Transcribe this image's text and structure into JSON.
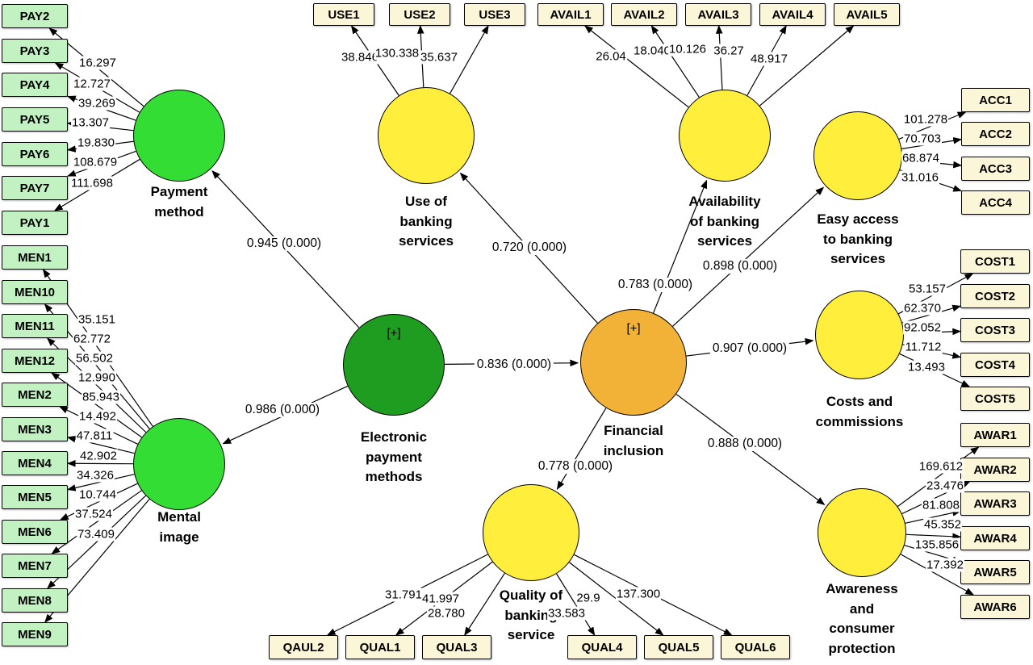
{
  "colors": {
    "background": "#ffffff",
    "indicator_fill_green": "#c2f2c2",
    "indicator_fill_cream": "#fcf6d8",
    "latent_green": "#33dd33",
    "latent_dark_green": "#1f9d20",
    "latent_yellow": "#ffee3b",
    "latent_orange": "#f2b137",
    "edge_color": "#000000"
  },
  "nodes": {
    "payment_method": {
      "label": "Payment\nmethod"
    },
    "mental_image": {
      "label": "Mental\nimage"
    },
    "electronic_payment_methods": {
      "label": "Electronic\npayment\nmethods",
      "badge": "[+]"
    },
    "use_of_banking_services": {
      "label": "Use of\nbanking\nservices"
    },
    "availability_of_banking_services": {
      "label": "Availability\nof banking\nservices"
    },
    "easy_access_to_banking_services": {
      "label": "Easy access\nto banking\nservices"
    },
    "costs_and_commissions": {
      "label": "Costs and\ncommissions"
    },
    "awareness_and_consumer_protection": {
      "label": "Awareness\nand\nconsumer\nprotection"
    },
    "quality_of_banking_service": {
      "label": "Quality of\nbanking\nservice"
    },
    "financial_inclusion": {
      "label": "Financial\ninclusion",
      "badge": "[+]"
    }
  },
  "indicators": {
    "pay": [
      "PAY2",
      "PAY3",
      "PAY4",
      "PAY5",
      "PAY6",
      "PAY7",
      "PAY1"
    ],
    "men": [
      "MEN1",
      "MEN10",
      "MEN11",
      "MEN12",
      "MEN2",
      "MEN3",
      "MEN4",
      "MEN5",
      "MEN6",
      "MEN7",
      "MEN8",
      "MEN9"
    ],
    "use": [
      "USE1",
      "USE2",
      "USE3"
    ],
    "avail": [
      "AVAIL1",
      "AVAIL2",
      "AVAIL3",
      "AVAIL4",
      "AVAIL5"
    ],
    "acc": [
      "ACC1",
      "ACC2",
      "ACC3",
      "ACC4"
    ],
    "cost": [
      "COST1",
      "COST2",
      "COST3",
      "COST4",
      "COST5"
    ],
    "awar": [
      "AWAR1",
      "AWAR2",
      "AWAR3",
      "AWAR4",
      "AWAR5",
      "AWAR6"
    ],
    "qual": [
      "QAUL2",
      "QUAL1",
      "QUAL3",
      "QUAL4",
      "QUAL5",
      "QUAL6"
    ]
  },
  "loadings": {
    "pay": [
      "16.297",
      "12.727",
      "39.269",
      "13.307",
      "19.830",
      "108.679",
      "111.698"
    ],
    "men": [
      "35.151",
      "62.772",
      "56.502",
      "12.990",
      "85.943",
      "14.492",
      "47.811",
      "42.902",
      "34.326",
      "10.744",
      "37.524",
      "73.409"
    ],
    "use": [
      "38.846",
      "130.338",
      "35.637"
    ],
    "avail": [
      "26.04",
      "18.040",
      "10.126",
      "36.27",
      "48.917"
    ],
    "acc": [
      "101.278",
      "70.703",
      "68.874",
      "31.016"
    ],
    "cost": [
      "53.157",
      "62.370",
      "92.052",
      "11.712",
      "13.493"
    ],
    "awar": [
      "169.612",
      "23.476",
      "81.808",
      "45.352",
      "135.856",
      "17.392"
    ],
    "qual": [
      "31.791",
      "41.997",
      "28.780",
      "33.583",
      "29.9",
      "137.300"
    ]
  },
  "path_coefficients": {
    "epm_to_payment_method": "0.945 (0.000)",
    "epm_to_mental_image": "0.986 (0.000)",
    "epm_to_financial_inclusion": "0.836 (0.000)",
    "fi_to_use": "0.720 (0.000)",
    "fi_to_availability": "0.783 (0.000)",
    "fi_to_easy_access": "0.898 (0.000)",
    "fi_to_costs": "0.907 (0.000)",
    "fi_to_awareness": "0.888 (0.000)",
    "fi_to_quality": "0.778 (0.000)"
  }
}
